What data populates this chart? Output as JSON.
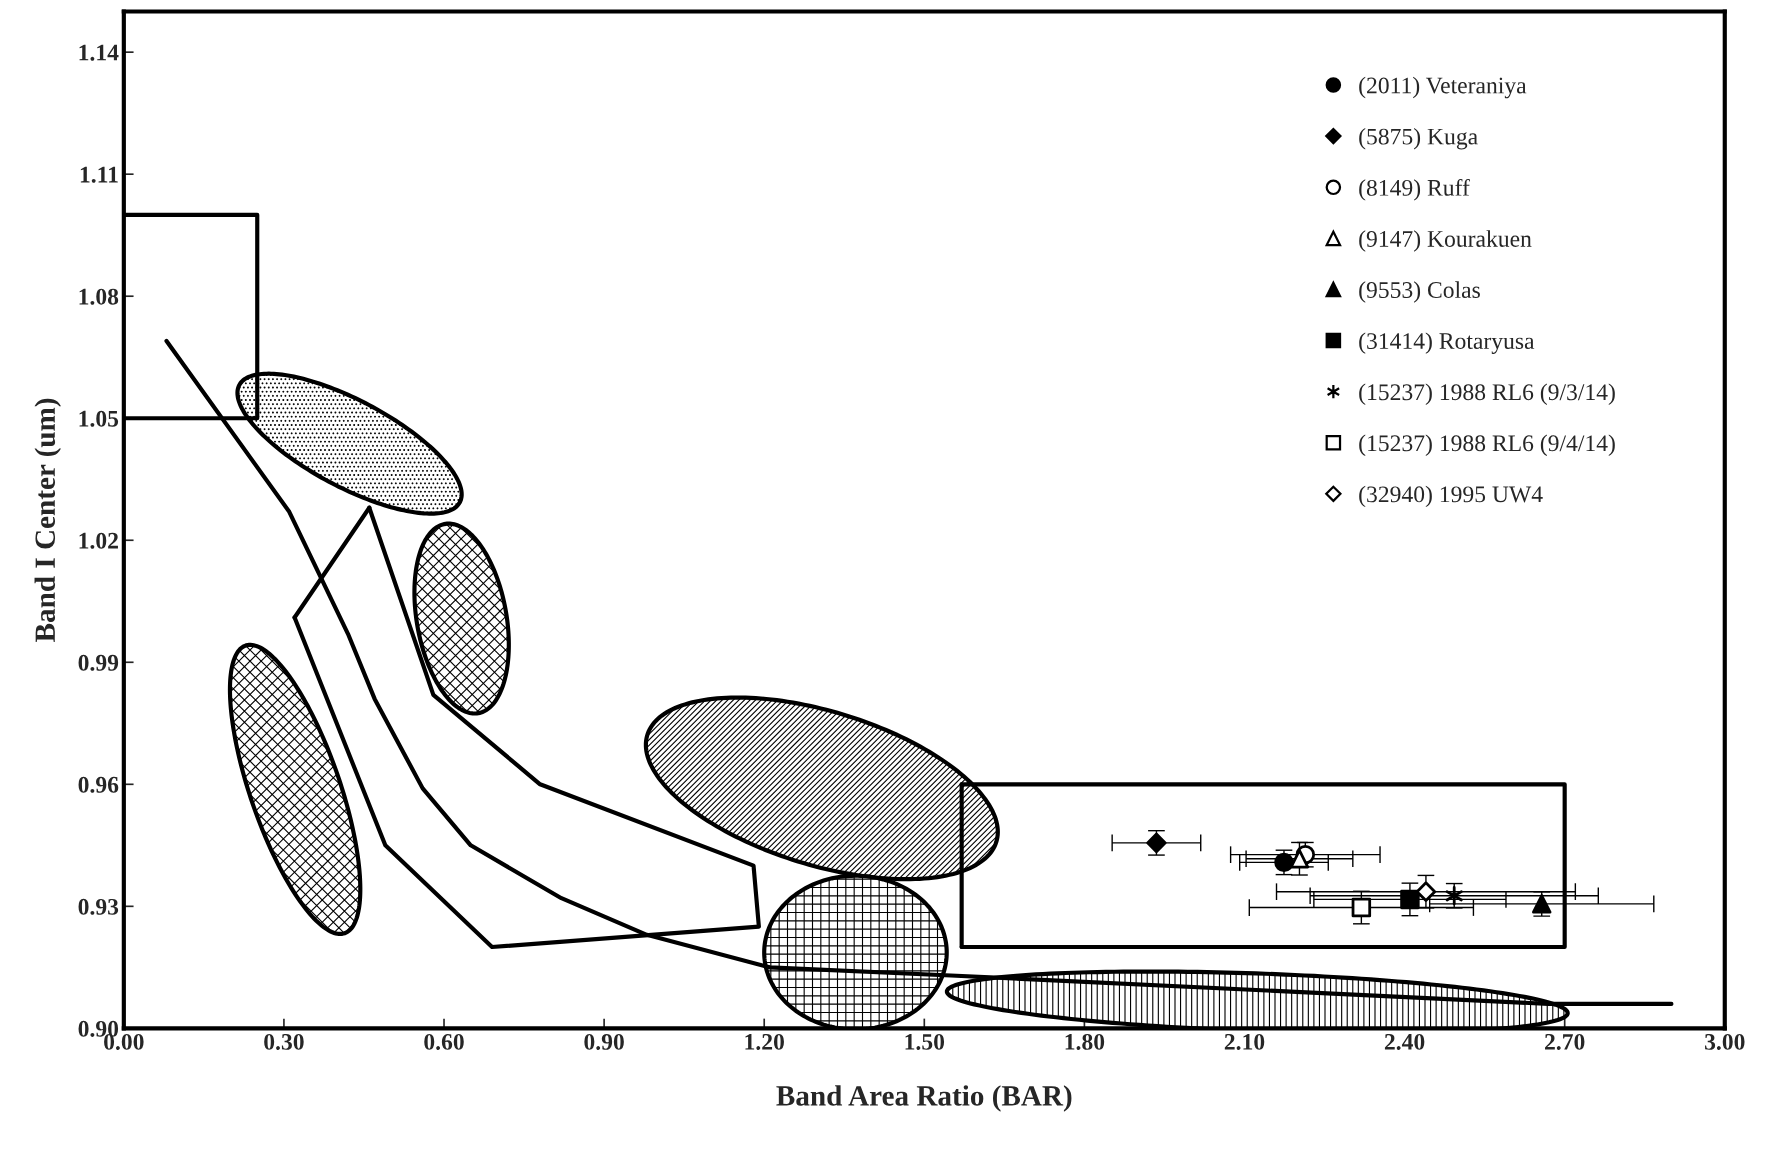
{
  "chart_data": {
    "type": "scatter",
    "xlabel": "Band Area Ratio (BAR)",
    "ylabel": "Band I Center (um)",
    "xlim": [
      0,
      3.0
    ],
    "ylim": [
      0.9,
      1.15
    ],
    "xticks": [
      {
        "value": 0,
        "label": "0.00"
      },
      {
        "value": 0.3,
        "label": "0.30"
      },
      {
        "value": 0.6,
        "label": "0.60"
      },
      {
        "value": 0.9,
        "label": "0.90"
      },
      {
        "value": 1.2,
        "label": "1.20"
      },
      {
        "value": 1.5,
        "label": "1.50"
      },
      {
        "value": 1.8,
        "label": "1.80"
      },
      {
        "value": 2.1,
        "label": "2.10"
      },
      {
        "value": 2.4,
        "label": "2.40"
      },
      {
        "value": 2.7,
        "label": "2.70"
      },
      {
        "value": 3.0,
        "label": "3.00"
      }
    ],
    "yticks": [
      {
        "value": 0.9,
        "label": "0.90"
      },
      {
        "value": 0.93,
        "label": "0.93"
      },
      {
        "value": 0.96,
        "label": "0.96"
      },
      {
        "value": 0.99,
        "label": "0.99"
      },
      {
        "value": 1.02,
        "label": "1.02"
      },
      {
        "value": 1.05,
        "label": "1.05"
      },
      {
        "value": 1.08,
        "label": "1.08"
      },
      {
        "value": 1.11,
        "label": "1.11"
      },
      {
        "value": 1.14,
        "label": "1.14"
      }
    ],
    "grid": false,
    "legend": "top right",
    "series": [
      {
        "type": "line",
        "color": "#000000",
        "x": [
          0.08,
          0.31,
          0.42,
          0.47,
          0.56,
          0.65,
          0.82,
          0.98,
          1.21,
          1.55,
          2.67,
          2.9
        ],
        "values": [
          1.069,
          1.027,
          0.997,
          0.981,
          0.959,
          0.945,
          0.932,
          0.923,
          0.915,
          0.913,
          0.906,
          0.906
        ]
      },
      {
        "type": "line",
        "color": "#000000",
        "x": [
          0,
          0.25,
          0.25,
          0
        ],
        "values": [
          1.1,
          1.1,
          1.05,
          1.05
        ]
      },
      {
        "type": "line",
        "color": "#000000",
        "x": [
          0.46,
          0.58,
          0.78,
          1.18,
          1.19,
          0.69,
          0.49,
          0.32
        ],
        "values": [
          1.028,
          0.982,
          0.96,
          0.94,
          0.925,
          0.92,
          0.945,
          1.001
        ]
      },
      {
        "type": "line",
        "color": "#000000",
        "x": [
          0.32,
          0.46
        ],
        "values": [
          1.001,
          1.028
        ]
      },
      {
        "type": "line",
        "color": "#000000",
        "x": [
          1.57,
          2.7,
          2.7,
          1.57
        ],
        "values": [
          0.96,
          0.96,
          0.92,
          0.92
        ]
      },
      {
        "type": "line",
        "color": "#000000",
        "x": [
          1.57,
          1.57
        ],
        "values": [
          0.92,
          0.96
        ]
      },
      {
        "name": "(2011) Veteraniya",
        "color": "#000000",
        "marker": "circle",
        "x": [
          2.174
        ],
        "values": [
          0.9408
        ],
        "xerrors": [
          0.083
        ],
        "errors": [
          0.003
        ]
      },
      {
        "name": "(5875) Kuga",
        "color": "#000000",
        "marker": "diamond",
        "x": [
          1.935
        ],
        "values": [
          0.9456
        ],
        "xerrors": [
          0.083
        ],
        "errors": [
          0.003
        ]
      },
      {
        "name": "(8149) Ruff",
        "color": "#ffffff",
        "marker": "circle",
        "x": [
          2.214
        ],
        "values": [
          0.9427
        ],
        "xerrors": [
          0.14
        ],
        "errors": [
          0.003
        ]
      },
      {
        "name": "(9147) Kourakuen",
        "color": "#ffffff",
        "marker": "triangle",
        "x": [
          2.203
        ],
        "values": [
          0.9417
        ],
        "xerrors": [
          0.1
        ],
        "errors": [
          0.004
        ]
      },
      {
        "name": "(9553) Colas",
        "color": "#000000",
        "marker": "triangle",
        "x": [
          2.657
        ],
        "values": [
          0.9306
        ],
        "xerrors": [
          0.21
        ],
        "errors": [
          0.003
        ]
      },
      {
        "name": "(31414) Rotaryusa",
        "color": "#000000",
        "marker": "square",
        "x": [
          2.41
        ],
        "values": [
          0.9317
        ],
        "xerrors": [
          0.18
        ],
        "errors": [
          0.004
        ]
      },
      {
        "name": "(15237) 1988 RL6 (9/3/14)",
        "color": "#000000",
        "marker": "cross",
        "x": [
          2.493
        ],
        "values": [
          0.9326
        ],
        "xerrors": [
          0.27
        ],
        "errors": [
          0.003
        ]
      },
      {
        "name": "(15237) 1988 RL6 (9/4/14)",
        "color": "#ffffff",
        "marker": "square",
        "x": [
          2.319
        ],
        "values": [
          0.9297
        ],
        "xerrors": [
          0.21
        ],
        "errors": [
          0.004
        ]
      },
      {
        "name": "(32940) 1995 UW4",
        "color": "#ffffff",
        "marker": "diamond",
        "x": [
          2.44
        ],
        "values": [
          0.9336
        ],
        "xerrors": [
          0.28
        ],
        "errors": [
          0.004
        ]
      }
    ]
  }
}
